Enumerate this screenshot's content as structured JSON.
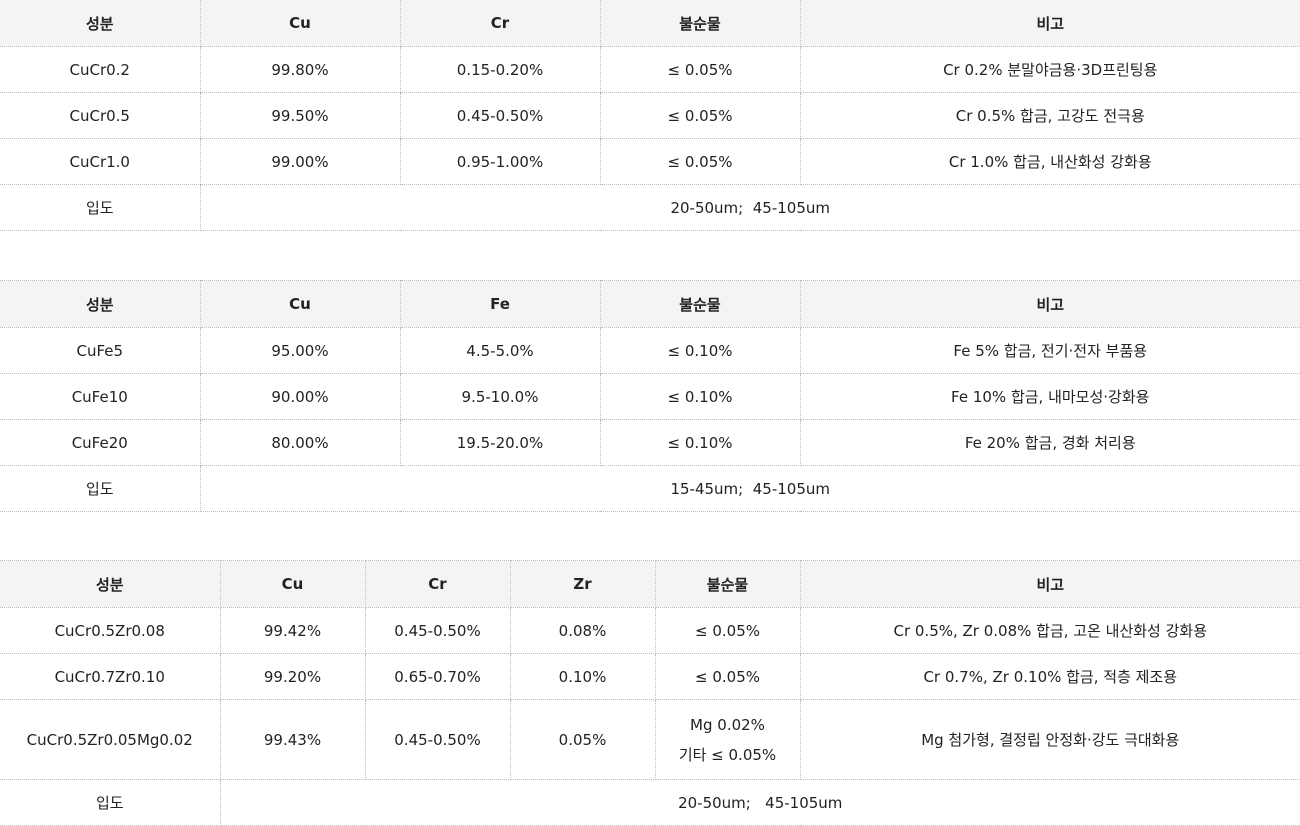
{
  "tables": [
    {
      "headers": [
        "성분",
        "Cu",
        "Cr",
        "불순물",
        "비고"
      ],
      "rows": [
        [
          "CuCr0.2",
          "99.80%",
          "0.15-0.20%",
          "≤ 0.05%",
          "Cr 0.2% 분말야금용·3D프린팅용"
        ],
        [
          "CuCr0.5",
          "99.50%",
          "0.45-0.50%",
          "≤ 0.05%",
          "Cr 0.5% 합금, 고강도 전극용"
        ],
        [
          "CuCr1.0",
          "99.00%",
          "0.95-1.00%",
          "≤ 0.05%",
          "Cr 1.0% 합금, 내산화성 강화용"
        ]
      ],
      "footer": {
        "label": "입도",
        "value": "20-50um;  45-105um"
      }
    },
    {
      "headers": [
        "성분",
        "Cu",
        "Fe",
        "불순물",
        "비고"
      ],
      "rows": [
        [
          "CuFe5",
          "95.00%",
          "4.5-5.0%",
          "≤ 0.10%",
          "Fe 5% 합금, 전기·전자 부품용"
        ],
        [
          "CuFe10",
          "90.00%",
          "9.5-10.0%",
          "≤ 0.10%",
          "Fe 10% 합금, 내마모성·강화용"
        ],
        [
          "CuFe20",
          "80.00%",
          "19.5-20.0%",
          "≤ 0.10%",
          "Fe 20% 합금, 경화 처리용"
        ]
      ],
      "footer": {
        "label": "입도",
        "value": "15-45um;  45-105um"
      }
    },
    {
      "headers": [
        "성분",
        "Cu",
        "Cr",
        "Zr",
        "불순물",
        "비고"
      ],
      "rows": [
        [
          "CuCr0.5Zr0.08",
          "99.42%",
          "0.45-0.50%",
          "0.08%",
          "≤ 0.05%",
          "Cr 0.5%, Zr 0.08% 합금, 고온 내산화성 강화용"
        ],
        [
          "CuCr0.7Zr0.10",
          "99.20%",
          "0.65-0.70%",
          "0.10%",
          "≤ 0.05%",
          "Cr 0.7%, Zr 0.10% 합금, 적층 제조용"
        ],
        [
          "CuCr0.5Zr0.05Mg0.02",
          "99.43%",
          "0.45-0.50%",
          "0.05%",
          "Mg 0.02%",
          "Mg 첨가형, 결정립 안정화·강도 극대화용"
        ]
      ],
      "extra_impurity_line": "기타 ≤ 0.05%",
      "footer": {
        "label": "입도",
        "value": "20-50um;   45-105um"
      }
    }
  ]
}
